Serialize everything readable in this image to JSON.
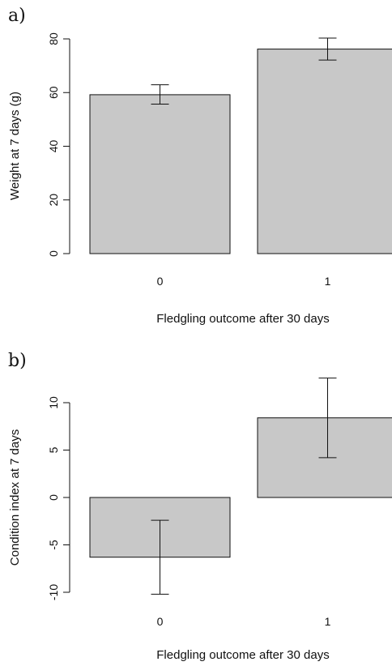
{
  "colors": {
    "bar_fill": "#c8c8c8",
    "stroke": "#111111",
    "background": "#ffffff"
  },
  "chart_data": [
    {
      "panel_label": "a)",
      "type": "bar",
      "categories": [
        "0",
        "1"
      ],
      "values": [
        59.2,
        76.2
      ],
      "error_low": [
        55.7,
        72.1
      ],
      "error_high": [
        62.9,
        80.3
      ],
      "ylabel": "Weight at 7 days (g)",
      "xlabel": "Fledgling outcome after 30 days",
      "ylim": [
        0,
        80
      ],
      "yticks": [
        "0",
        "20",
        "40",
        "60",
        "80"
      ],
      "grid": false
    },
    {
      "panel_label": "b)",
      "type": "bar",
      "categories": [
        "0",
        "1"
      ],
      "values": [
        -6.3,
        8.4
      ],
      "error_low": [
        -10.2,
        4.2
      ],
      "error_high": [
        -2.4,
        12.6
      ],
      "ylabel": "Condition index at 7 days",
      "xlabel": "Fledgling outcome after 30 days",
      "ylim": [
        -10,
        10
      ],
      "yticks": [
        "-10",
        "-5",
        "0",
        "5",
        "10"
      ],
      "grid": false
    }
  ]
}
